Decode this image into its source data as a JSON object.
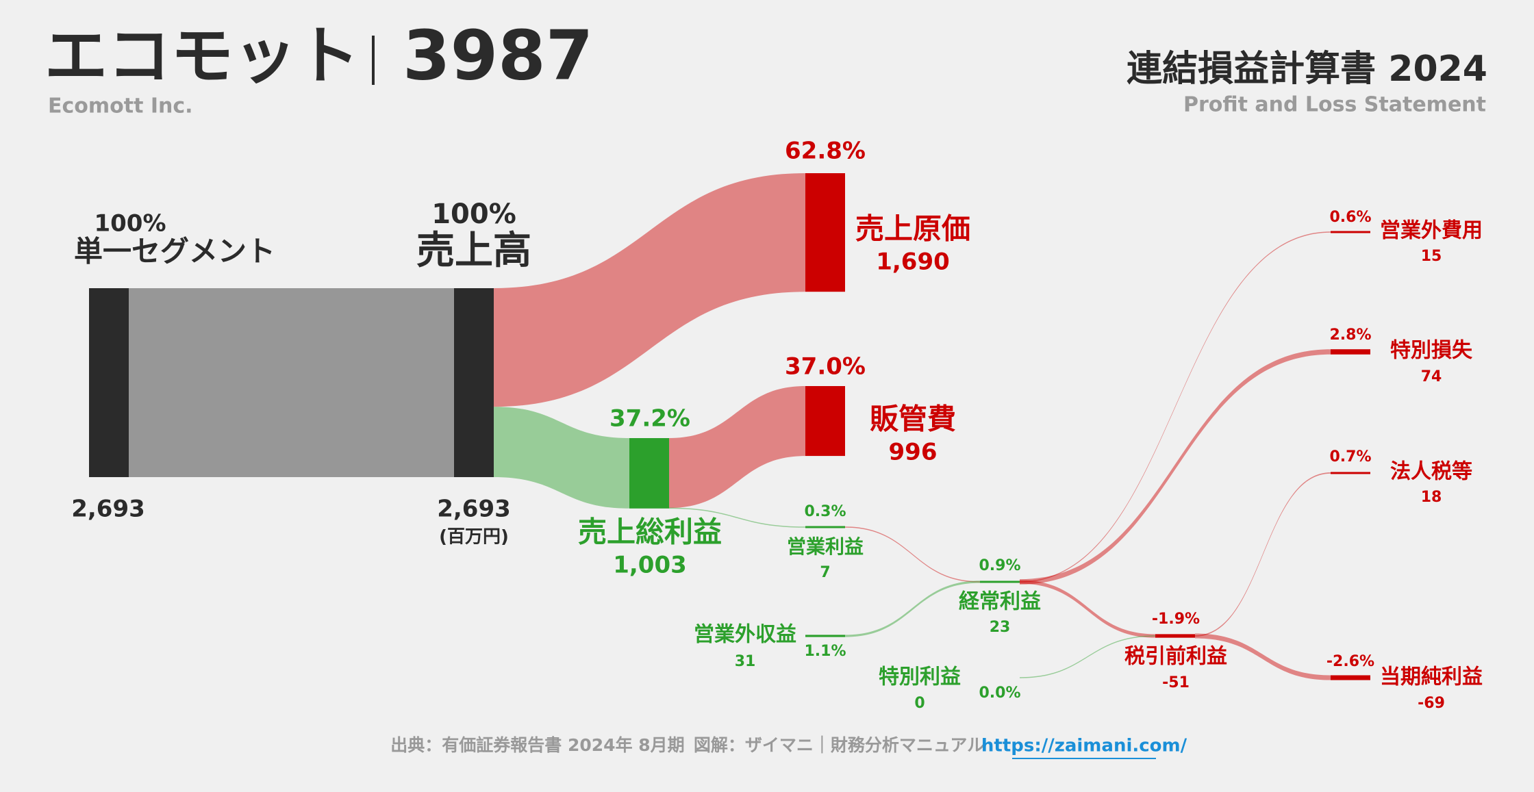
{
  "chart_data": {
    "type": "sankey",
    "title": "エコモット",
    "code": "3987",
    "subtitle": "Ecomott Inc.",
    "statement_title": "連結損益計算書 2024",
    "statement_subtitle": "Profit and Loss Statement",
    "unit": "(百万円)",
    "source": "出典：有価証券報告書 2024年 8月期",
    "credit": "図解：ザイマニ｜財務分析マニュアル",
    "url": "https://zaimani.com/",
    "nodes": [
      {
        "name": "単一セグメント",
        "value": 2693,
        "value_label": "2,693",
        "share": 100,
        "share_label": "100%",
        "color": "#2b2b2b"
      },
      {
        "name": "売上高",
        "value": 2693,
        "value_label": "2,693",
        "share": 100,
        "share_label": "100%",
        "color": "#2b2b2b"
      },
      {
        "name": "売上原価",
        "value": 1690,
        "value_label": "1,690",
        "share": 62.8,
        "share_label": "62.8%",
        "color": "#cc0000"
      },
      {
        "name": "売上総利益",
        "value": 1003,
        "value_label": "1,003",
        "share": 37.2,
        "share_label": "37.2%",
        "color": "#2ca02c"
      },
      {
        "name": "販管費",
        "value": 996,
        "value_label": "996",
        "share": 37.0,
        "share_label": "37.0%",
        "color": "#cc0000"
      },
      {
        "name": "営業利益",
        "value": 7,
        "value_label": "7",
        "share": 0.3,
        "share_label": "0.3%",
        "color": "#2ca02c"
      },
      {
        "name": "営業外収益",
        "value": 31,
        "value_label": "31",
        "share": 1.1,
        "share_label": "1.1%",
        "color": "#2ca02c"
      },
      {
        "name": "営業外費用",
        "value": 15,
        "value_label": "15",
        "share": 0.6,
        "share_label": "0.6%",
        "color": "#cc0000"
      },
      {
        "name": "経常利益",
        "value": 23,
        "value_label": "23",
        "share": 0.9,
        "share_label": "0.9%",
        "color": "#2ca02c"
      },
      {
        "name": "特別利益",
        "value": 0,
        "value_label": "0",
        "share": 0.0,
        "share_label": "0.0%",
        "color": "#2ca02c"
      },
      {
        "name": "特別損失",
        "value": 74,
        "value_label": "74",
        "share": 2.8,
        "share_label": "2.8%",
        "color": "#cc0000"
      },
      {
        "name": "税引前利益",
        "value": -51,
        "value_label": "-51",
        "share": -1.9,
        "share_label": "-1.9%",
        "color": "#cc0000"
      },
      {
        "name": "法人税等",
        "value": 18,
        "value_label": "18",
        "share": 0.7,
        "share_label": "0.7%",
        "color": "#cc0000"
      },
      {
        "name": "当期純利益",
        "value": -69,
        "value_label": "-69",
        "share": -2.6,
        "share_label": "-2.6%",
        "color": "#cc0000"
      }
    ]
  }
}
